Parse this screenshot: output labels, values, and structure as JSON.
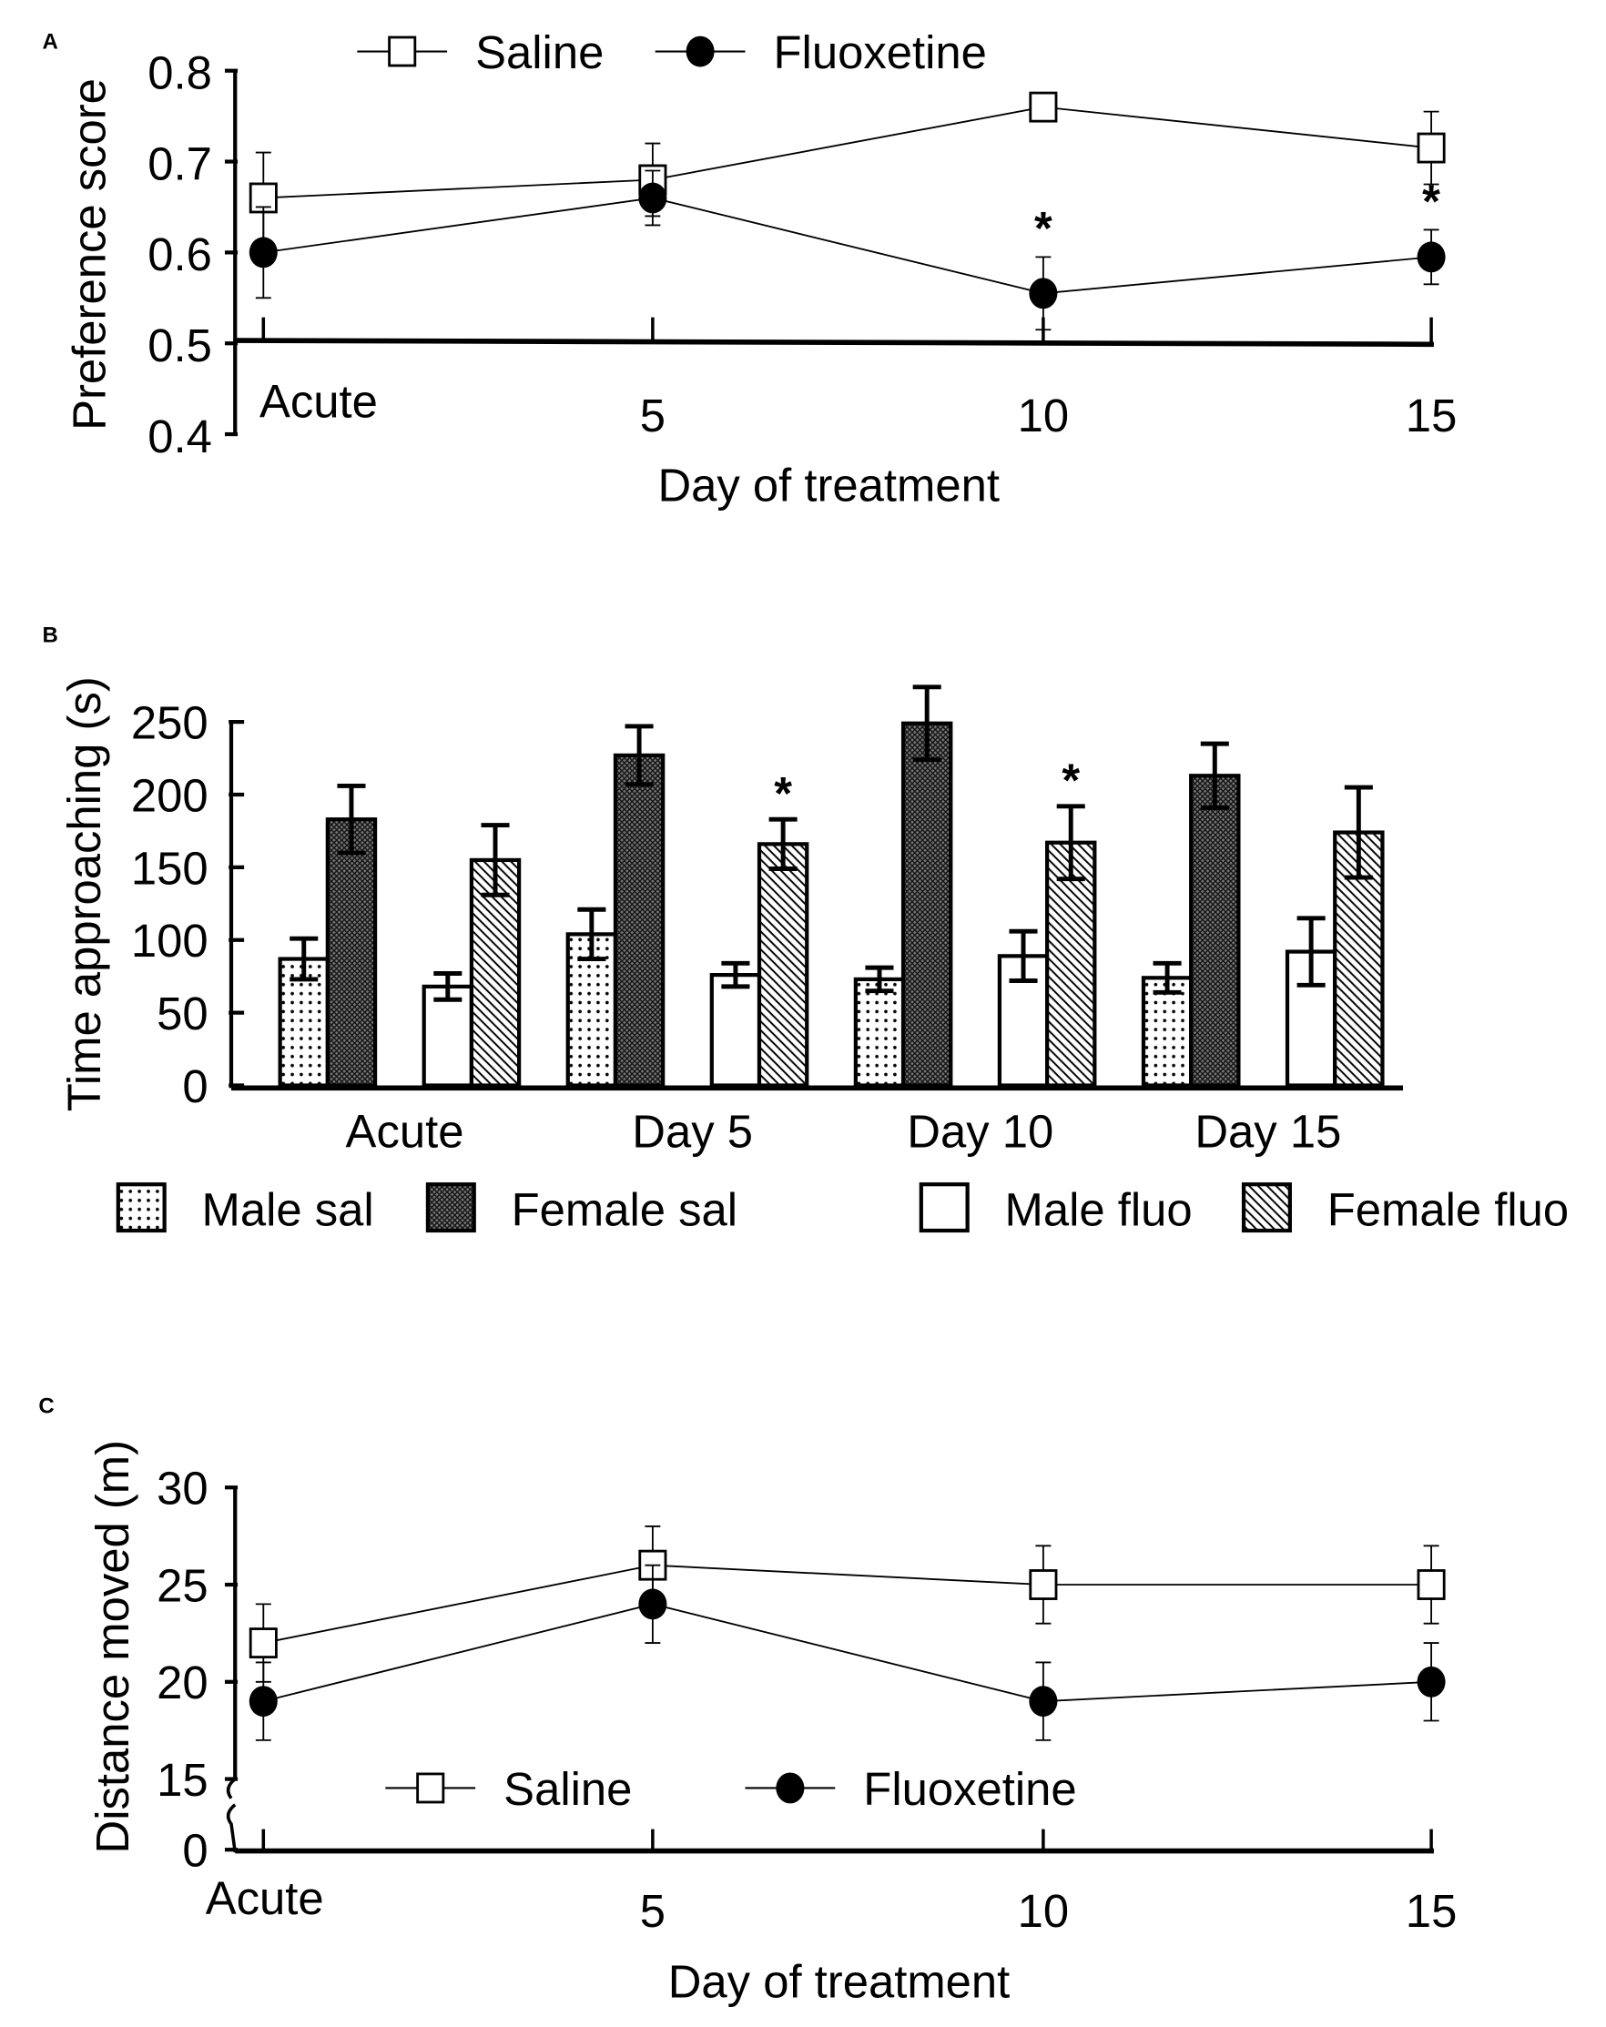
{
  "chart_data": [
    {
      "panel": "A",
      "type": "line",
      "xlabel": "Day of treatment",
      "ylabel": "Preference score",
      "categories": [
        "Acute",
        "5",
        "10",
        "15"
      ],
      "ylim": [
        0.4,
        0.8
      ],
      "yticks": [
        "0.4",
        "0.5",
        "0.6",
        "0.7",
        "0.8"
      ],
      "legend_position": "top",
      "series": [
        {
          "name": "Saline",
          "marker": "open-square",
          "values": [
            0.66,
            0.68,
            0.76,
            0.715
          ],
          "errors": [
            0.05,
            0.04,
            0.015,
            0.04
          ]
        },
        {
          "name": "Fluoxetine",
          "marker": "filled-circle",
          "values": [
            0.6,
            0.66,
            0.555,
            0.595
          ],
          "errors": [
            0.05,
            0.03,
            0.04,
            0.03
          ]
        }
      ],
      "significance": [
        "",
        "",
        "*",
        "*"
      ]
    },
    {
      "panel": "B",
      "type": "bar",
      "xlabel": "",
      "ylabel": "Time approaching (s)",
      "categories": [
        "Acute",
        "Day 5",
        "Day 10",
        "Day 15"
      ],
      "ylim": [
        0,
        250
      ],
      "yticks": [
        "0",
        "50",
        "100",
        "150",
        "200",
        "250"
      ],
      "legend_position": "bottom",
      "series": [
        {
          "name": "Male sal",
          "pattern": "dots",
          "values": [
            87,
            104,
            73,
            74
          ],
          "errors": [
            14,
            17,
            8,
            10
          ]
        },
        {
          "name": "Female sal",
          "pattern": "crosshatch",
          "values": [
            183,
            227,
            249,
            213
          ],
          "errors": [
            23,
            20,
            25,
            22
          ]
        },
        {
          "name": "Male fluo",
          "pattern": "white",
          "values": [
            68,
            76,
            89,
            92
          ],
          "errors": [
            9,
            8,
            17,
            23
          ]
        },
        {
          "name": "Female fluo",
          "pattern": "diagonal",
          "values": [
            155,
            166,
            167,
            174
          ],
          "errors": [
            24,
            17,
            25,
            31
          ]
        }
      ],
      "significance_female_fluo": [
        "",
        "*",
        "*",
        ""
      ]
    },
    {
      "panel": "C",
      "type": "line",
      "xlabel": "Day of treatment",
      "ylabel": "Distance moved (m)",
      "categories": [
        "Acute",
        "5",
        "10",
        "15"
      ],
      "ylim": [
        15,
        30
      ],
      "axis_break": true,
      "yticks": [
        "0",
        "15",
        "20",
        "25",
        "30"
      ],
      "legend_position": "bottom",
      "series": [
        {
          "name": "Saline",
          "marker": "open-square",
          "values": [
            22,
            26,
            25,
            25
          ],
          "errors": [
            2,
            2,
            2,
            2
          ]
        },
        {
          "name": "Fluoxetine",
          "marker": "filled-circle",
          "values": [
            19,
            24,
            19,
            20
          ],
          "errors": [
            2,
            2,
            2,
            2
          ]
        }
      ]
    }
  ]
}
